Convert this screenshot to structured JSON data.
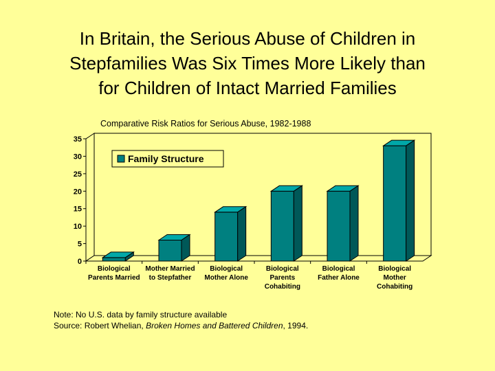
{
  "slide": {
    "title_lines": [
      "In Britain, the Serious Abuse of Children in",
      "Stepfamilies Was Six Times More Likely than",
      "for Children of Intact Married Families"
    ]
  },
  "note": {
    "line1": "Note: No U.S. data by family structure available",
    "source_prefix": "Source: Robert Whelian, ",
    "source_title": "Broken Homes and Battered Children",
    "source_suffix": ", 1994."
  },
  "chart_data": {
    "type": "bar",
    "title": "Comparative Risk Ratios for Serious Abuse, 1982-1988",
    "categories": [
      [
        "Biological",
        "Parents Married"
      ],
      [
        "Mother Married",
        "to Stepfather"
      ],
      [
        "Biological",
        "Mother Alone"
      ],
      [
        "Biological",
        "Parents",
        "Cohabiting"
      ],
      [
        "Biological",
        "Father Alone"
      ],
      [
        "Biological",
        "Mother",
        "Cohabiting"
      ]
    ],
    "series": [
      {
        "name": "Family Structure",
        "values": [
          1,
          6,
          14,
          20,
          20,
          33
        ]
      }
    ],
    "yticks": [
      0,
      5,
      10,
      15,
      20,
      25,
      30,
      35
    ],
    "ylim": [
      0,
      35
    ],
    "xlabel": "",
    "ylabel": "",
    "grid": false,
    "legend_position": "top-left",
    "colors": {
      "bar_front": "#008080",
      "bar_top": "#00a8a8",
      "bar_side": "#005858",
      "plot_wall": "#ffff99",
      "floor": "#ffff99"
    }
  }
}
